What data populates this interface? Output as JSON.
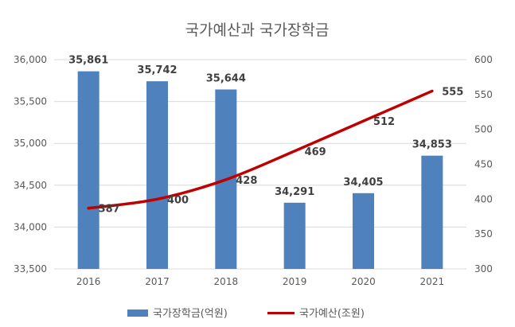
{
  "chart_data": {
    "type": "bar",
    "title": "국가예산과 국가장학금",
    "categories": [
      "2016",
      "2017",
      "2018",
      "2019",
      "2020",
      "2021"
    ],
    "series": [
      {
        "name": "국가장학금(억원)",
        "type": "bar",
        "axis": "left",
        "color": "#4f81bd",
        "values": [
          35861,
          35742,
          35644,
          34291,
          34405,
          34853
        ],
        "labels": [
          "35,861",
          "35,742",
          "35,644",
          "34,291",
          "34,405",
          "34,853"
        ]
      },
      {
        "name": "국가예산(조원)",
        "type": "line",
        "axis": "right",
        "color": "#c00000",
        "values": [
          387,
          400,
          428,
          469,
          512,
          555
        ],
        "labels": [
          "387",
          "400",
          "428",
          "469",
          "512",
          "555"
        ]
      }
    ],
    "y_left": {
      "min": 33500,
      "max": 36000,
      "step": 500,
      "ticks": [
        "33,500",
        "34,000",
        "34,500",
        "35,000",
        "35,500",
        "36,000"
      ]
    },
    "y_right": {
      "min": 300,
      "max": 600,
      "step": 50,
      "ticks": [
        "300",
        "350",
        "400",
        "450",
        "500",
        "550",
        "600"
      ]
    },
    "grid": true,
    "legend_position": "bottom"
  }
}
